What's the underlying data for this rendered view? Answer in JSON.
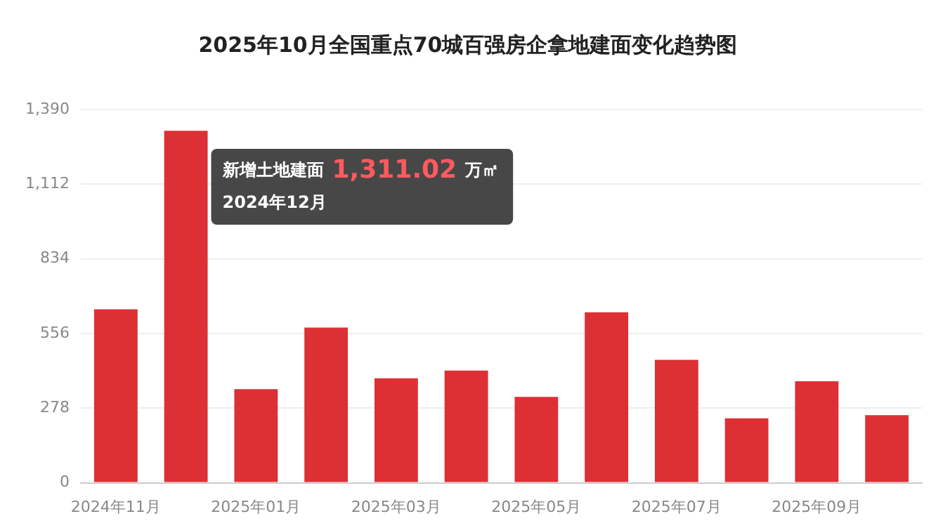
{
  "chart_data": {
    "type": "bar",
    "title": "2025年10月全国重点70城百强房企拿地建面变化趋势图",
    "categories": [
      "2024年11月",
      null,
      "2025年01月",
      null,
      "2025年03月",
      null,
      "2025年05月",
      null,
      "2025年07月",
      null,
      "2025年09月",
      null
    ],
    "values": [
      646,
      1311.02,
      349,
      578,
      389,
      418,
      320,
      635,
      458,
      240,
      378,
      252
    ],
    "annotations": [
      "新增土地建面",
      "1,311.02",
      "万㎡",
      "2024年12月"
    ],
    "color": "#dc3035",
    "ylim": [
      0,
      1390
    ],
    "yticks": [
      0,
      {
        "value": 278,
        "label": "278"
      },
      {
        "value": 556,
        "label": "556"
      },
      {
        "value": 834,
        "label": "834"
      },
      {
        "value": 1112,
        "label": "1,112"
      },
      {
        "value": 1390,
        "label": "1,390"
      }
    ],
    "grid": "y",
    "legend": false
  }
}
